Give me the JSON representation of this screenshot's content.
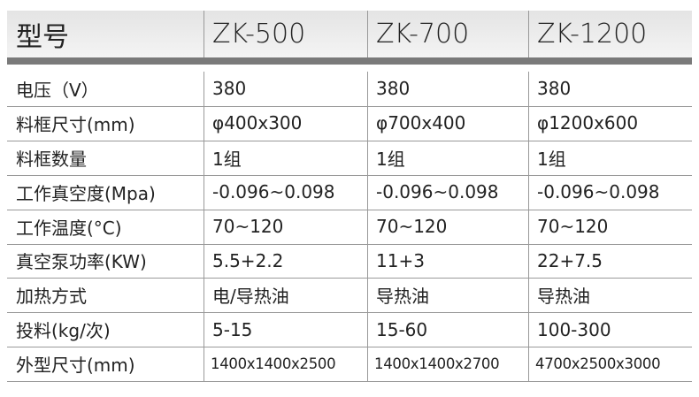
{
  "table": {
    "header": [
      "型号",
      "ZK-500",
      "ZK-700",
      "ZK-1200"
    ],
    "rows": [
      [
        "电压（V）",
        "380",
        "380",
        "380"
      ],
      [
        "料框尺寸(mm)",
        "φ400x300",
        "φ700x400",
        "φ1200x600"
      ],
      [
        "料框数量",
        "1组",
        "1组",
        "1组"
      ],
      [
        "工作真空度(Mpa)",
        "-0.096~0.098",
        "-0.096~0.098",
        "-0.096~0.098"
      ],
      [
        "工作温度(°C)",
        "70~120",
        "70~120",
        "70~120"
      ],
      [
        "真空泵功率(KW)",
        "5.5+2.2",
        "11+3",
        "22+7.5"
      ],
      [
        "加热方式",
        "电/导热油",
        "导热油",
        "导热油"
      ],
      [
        "投料(kg/次)",
        "5-15",
        "15-60",
        "100-300"
      ],
      [
        "外型尺寸(mm)",
        "1400x1400x2500",
        "1400x1400x2700",
        "4700x2500x3000"
      ]
    ]
  }
}
